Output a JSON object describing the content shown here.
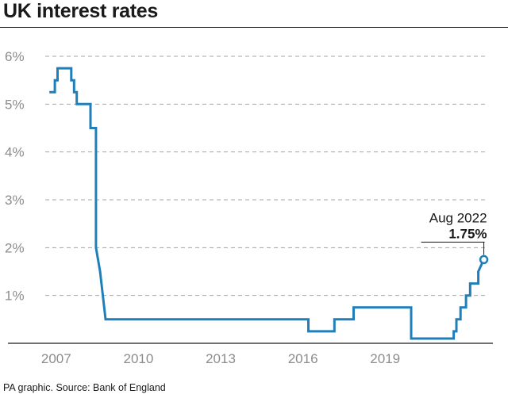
{
  "title": "UK interest rates",
  "footer": "PA graphic. Source: Bank of England",
  "chart_data": {
    "type": "line",
    "title": "UK interest rates",
    "xlabel": "",
    "ylabel": "",
    "xlim": [
      2006.6,
      2022.7
    ],
    "ylim": [
      0,
      6
    ],
    "grid": true,
    "x_ticks": [
      2007,
      2010,
      2013,
      2016,
      2019
    ],
    "x_tick_labels": [
      "2007",
      "2010",
      "2013",
      "2016",
      "2019"
    ],
    "y_ticks": [
      1,
      2,
      3,
      4,
      5,
      6
    ],
    "y_tick_labels": [
      "1%",
      "2%",
      "3%",
      "4%",
      "5%",
      "6%"
    ],
    "line_color": "#1f7fb8",
    "series": [
      {
        "x": [
          2006.75,
          2006.95,
          2006.95,
          2007.05,
          2007.05,
          2007.15,
          2007.15,
          2007.55,
          2007.55,
          2007.65,
          2007.65,
          2007.75,
          2007.75,
          2007.85,
          2007.85,
          2008.25,
          2008.25,
          2008.45,
          2008.45,
          2008.6,
          2008.8,
          2016.2,
          2016.2,
          2017.15,
          2017.15,
          2017.85,
          2017.85,
          2019.15,
          2019.15,
          2019.95,
          2019.95,
          2020.2,
          2020.2,
          2021.5,
          2021.5,
          2021.6,
          2021.6,
          2021.75,
          2021.75,
          2021.95,
          2021.95,
          2022.1,
          2022.1,
          2022.2,
          2022.3,
          2022.4,
          2022.4,
          2022.6
        ],
        "y": [
          5.25,
          5.25,
          5.5,
          5.5,
          5.75,
          5.75,
          5.75,
          5.75,
          5.5,
          5.5,
          5.25,
          5.25,
          5.0,
          5.0,
          5.0,
          5.0,
          4.5,
          4.5,
          2.0,
          1.5,
          0.5,
          0.5,
          0.25,
          0.25,
          0.5,
          0.5,
          0.75,
          0.75,
          0.75,
          0.75,
          0.1,
          0.1,
          0.1,
          0.1,
          0.25,
          0.25,
          0.5,
          0.5,
          0.75,
          0.75,
          1.0,
          1.0,
          1.25,
          1.25,
          1.25,
          1.25,
          1.5,
          1.75
        ]
      }
    ],
    "annotations": [
      {
        "label": "Aug 2022",
        "value": "1.75%",
        "x": 2022.6,
        "y": 1.75
      }
    ]
  }
}
